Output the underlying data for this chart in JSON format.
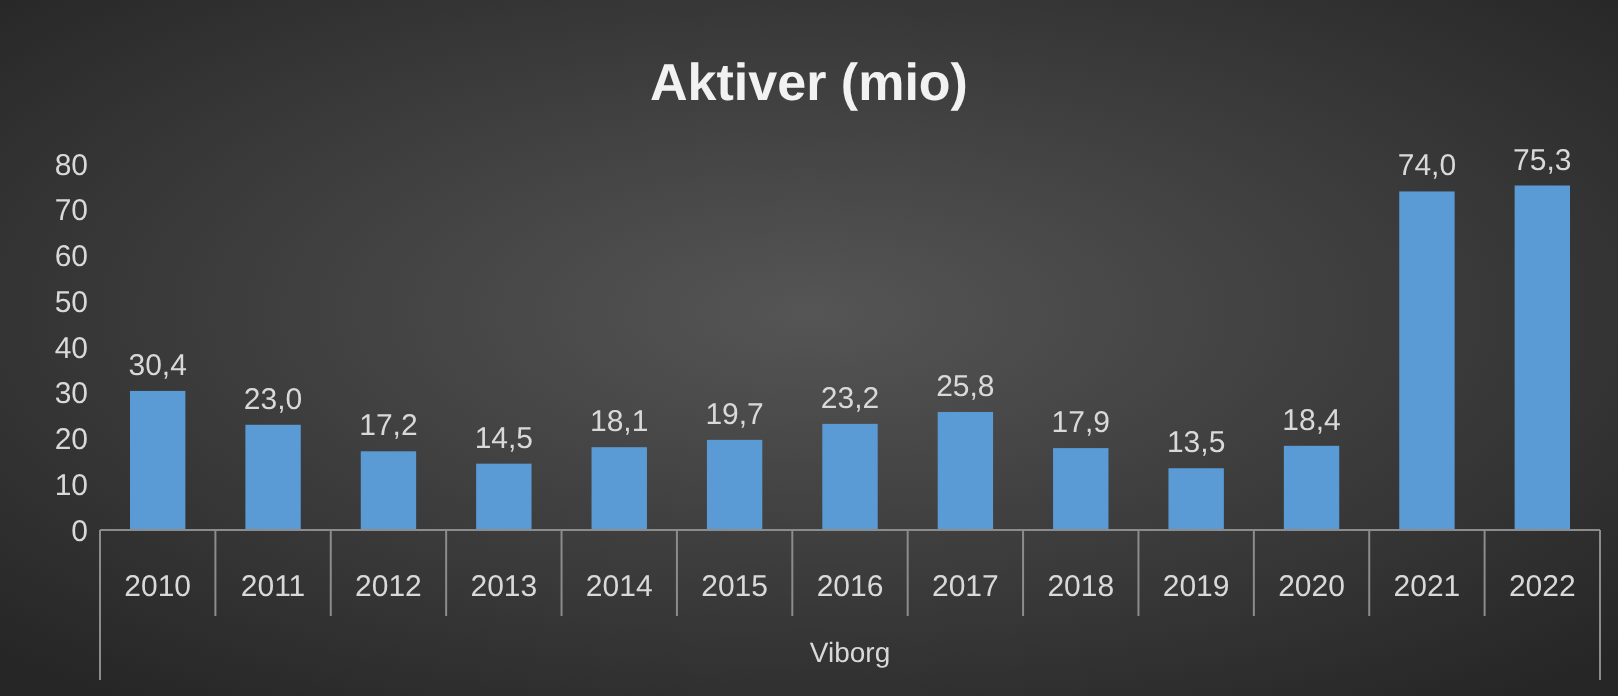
{
  "chart_data": {
    "type": "bar",
    "title": "Aktiver (mio)",
    "xlabel": "Viborg",
    "categories": [
      "2010",
      "2011",
      "2012",
      "2013",
      "2014",
      "2015",
      "2016",
      "2017",
      "2018",
      "2019",
      "2020",
      "2021",
      "2022"
    ],
    "values": [
      30.4,
      23.0,
      17.2,
      14.5,
      18.1,
      19.7,
      23.2,
      25.8,
      17.9,
      13.5,
      18.4,
      74.0,
      75.3
    ],
    "value_labels": [
      "30,4",
      "23,0",
      "17,2",
      "14,5",
      "18,1",
      "19,7",
      "23,2",
      "25,8",
      "17,9",
      "13,5",
      "18,4",
      "74,0",
      "75,3"
    ],
    "color": "#5b9bd5",
    "ylim": [
      0,
      80
    ],
    "yticks": [
      0,
      10,
      20,
      30,
      40,
      50,
      60,
      70,
      80
    ]
  }
}
